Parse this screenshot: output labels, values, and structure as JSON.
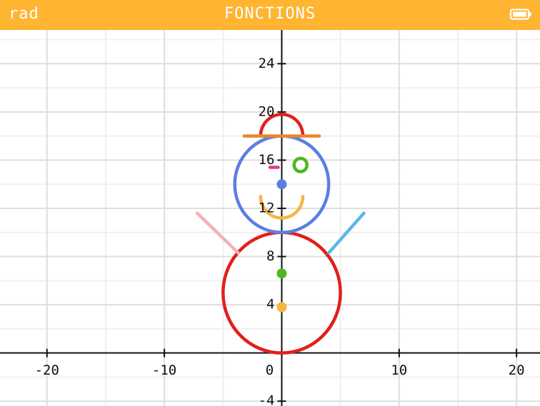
{
  "topbar": {
    "angle_mode": "rad",
    "title": "FONCTIONS",
    "battery_icon": "battery-full-icon"
  },
  "chart_data": {
    "type": "line",
    "title": "",
    "xlabel": "",
    "ylabel": "",
    "xlim": [
      -24,
      22
    ],
    "ylim": [
      -4.4,
      26.8
    ],
    "grid": true,
    "x_ticks": [
      -20,
      -10,
      0,
      10,
      20
    ],
    "x_tick_labels": [
      "-20",
      "-10",
      "0",
      "10",
      "20"
    ],
    "y_ticks": [
      -4,
      4,
      8,
      12,
      16,
      20,
      24
    ],
    "y_tick_labels": [
      "-4",
      "4",
      "8",
      "12",
      "16",
      "20",
      "24"
    ],
    "curves": [
      {
        "name": "body-circle",
        "kind": "circle",
        "cx": 0,
        "cy": 5,
        "r": 5,
        "color": "#e0201c"
      },
      {
        "name": "head-circle",
        "kind": "circle",
        "cx": 0,
        "cy": 14,
        "r": 4,
        "color": "#5b7fe0"
      },
      {
        "name": "hat-dome",
        "kind": "arc",
        "cx": 0,
        "cy": 18,
        "r": 1.8,
        "from": 0,
        "to": 180,
        "color": "#e0201c"
      },
      {
        "name": "hat-brim",
        "kind": "segment",
        "x1": -3.2,
        "y1": 18,
        "x2": 3.2,
        "y2": 18,
        "color": "#e8862e"
      },
      {
        "name": "smile",
        "kind": "arc",
        "cx": 0,
        "cy": 13,
        "r": 1.8,
        "from": 180,
        "to": 360,
        "color": "#f5b740"
      },
      {
        "name": "right-eye",
        "kind": "circle",
        "cx": 1.6,
        "cy": 15.6,
        "r": 0.55,
        "color": "#4cb81c"
      },
      {
        "name": "left-eye",
        "kind": "segment",
        "x1": -1,
        "y1": 15.4,
        "x2": -0.3,
        "y2": 15.4,
        "color": "#e0398a"
      },
      {
        "name": "left-arm",
        "kind": "segment",
        "x1": -7.2,
        "y1": 11.6,
        "x2": -3.7,
        "y2": 8.3,
        "color": "#f5b0b8"
      },
      {
        "name": "right-arm",
        "kind": "segment",
        "x1": 4,
        "y1": 8.3,
        "x2": 7,
        "y2": 11.6,
        "color": "#5ab8e8"
      }
    ],
    "points": [
      {
        "name": "head-center",
        "x": 0,
        "y": 14,
        "color": "#5b7fe0"
      },
      {
        "name": "button-top",
        "x": 0,
        "y": 6.6,
        "color": "#4cb81c"
      },
      {
        "name": "button-bottom",
        "x": 0,
        "y": 3.8,
        "color": "#f5b740"
      }
    ]
  }
}
